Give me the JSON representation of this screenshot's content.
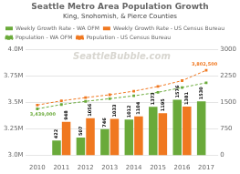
{
  "chart_data": {
    "type": "bar",
    "title": "Seattle Metro Area Population Growth",
    "subtitle": "King, Snohomish, & Pierce Counties",
    "categories": [
      "2010",
      "2011",
      "2012",
      "2013",
      "2014",
      "2015",
      "2016",
      "2017"
    ],
    "series": [
      {
        "name": "Weekly Growth Rate - WA OFM",
        "type": "bar",
        "axis": "y2",
        "color": "#6aaa3a",
        "values": [
          0,
          422,
          507,
          746,
          1012,
          1373,
          1576,
          1530
        ],
        "value_labels": [
          null,
          "422",
          "507",
          "746",
          "1012",
          "1373",
          "1576",
          "1530"
        ]
      },
      {
        "name": "Weekly Growth Rate - US Census Bureau",
        "type": "bar",
        "axis": "y2",
        "color": "#f07820",
        "values": [
          0,
          948,
          1056,
          1033,
          1104,
          1195,
          1381,
          0
        ],
        "value_labels": [
          null,
          "948",
          "1056",
          "1033",
          "1104",
          "1195",
          "1381",
          null
        ]
      },
      {
        "name": "Population - WA OFM",
        "type": "line",
        "color": "#6aaa3a",
        "marker": "square",
        "line_style": "dashed",
        "values": [
          3439000,
          3480000,
          3510000,
          3535000,
          3562000,
          3595000,
          3640000,
          3685000
        ]
      },
      {
        "name": "Population - US Census Bureau",
        "type": "line",
        "color": "#f07820",
        "marker": "square",
        "line_style": "dashed",
        "values": [
          3475000,
          3515000,
          3545000,
          3572000,
          3606000,
          3650000,
          3705000,
          3802500
        ]
      }
    ],
    "ylim": [
      3000000,
      4000000
    ],
    "yticks": [
      {
        "value": 3000000,
        "label": "3.0M"
      },
      {
        "value": 3250000,
        "label": "3.25M"
      },
      {
        "value": 3500000,
        "label": "3.5M"
      },
      {
        "value": 3750000,
        "label": "3.75M"
      },
      {
        "value": 4000000,
        "label": "4.0M"
      }
    ],
    "y2lim": [
      0,
      3000
    ],
    "y2ticks": [
      0,
      750,
      1500,
      2250,
      3000
    ],
    "grid": true,
    "legend": "upper left",
    "data_labels": true,
    "annotations": [
      {
        "text": "3,439,000",
        "color": "#6aaa3a"
      },
      {
        "text": "3,802,500",
        "color": "#f07820"
      },
      {
        "text": "SeattleBubble.com",
        "color": "#c8c4bc"
      }
    ]
  }
}
